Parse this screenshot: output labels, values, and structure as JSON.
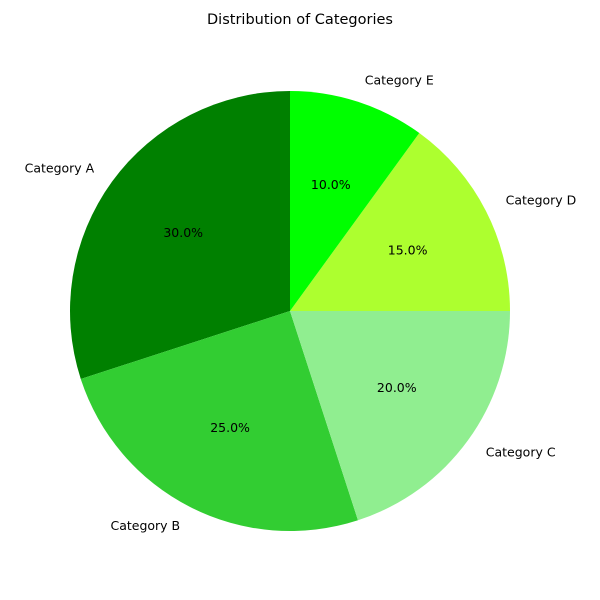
{
  "chart_data": {
    "type": "pie",
    "title": "Distribution of Categories",
    "start_angle_deg": 90,
    "direction": "counterclockwise",
    "slices": [
      {
        "label": "Category A",
        "value": 30,
        "pct_label": "30.0%",
        "color": "#008000"
      },
      {
        "label": "Category B",
        "value": 25,
        "pct_label": "25.0%",
        "color": "#32cd32"
      },
      {
        "label": "Category C",
        "value": 20,
        "pct_label": "20.0%",
        "color": "#90ee90"
      },
      {
        "label": "Category D",
        "value": 15,
        "pct_label": "15.0%",
        "color": "#adff2f"
      },
      {
        "label": "Category E",
        "value": 10,
        "pct_label": "10.0%",
        "color": "#00ff00"
      }
    ]
  }
}
